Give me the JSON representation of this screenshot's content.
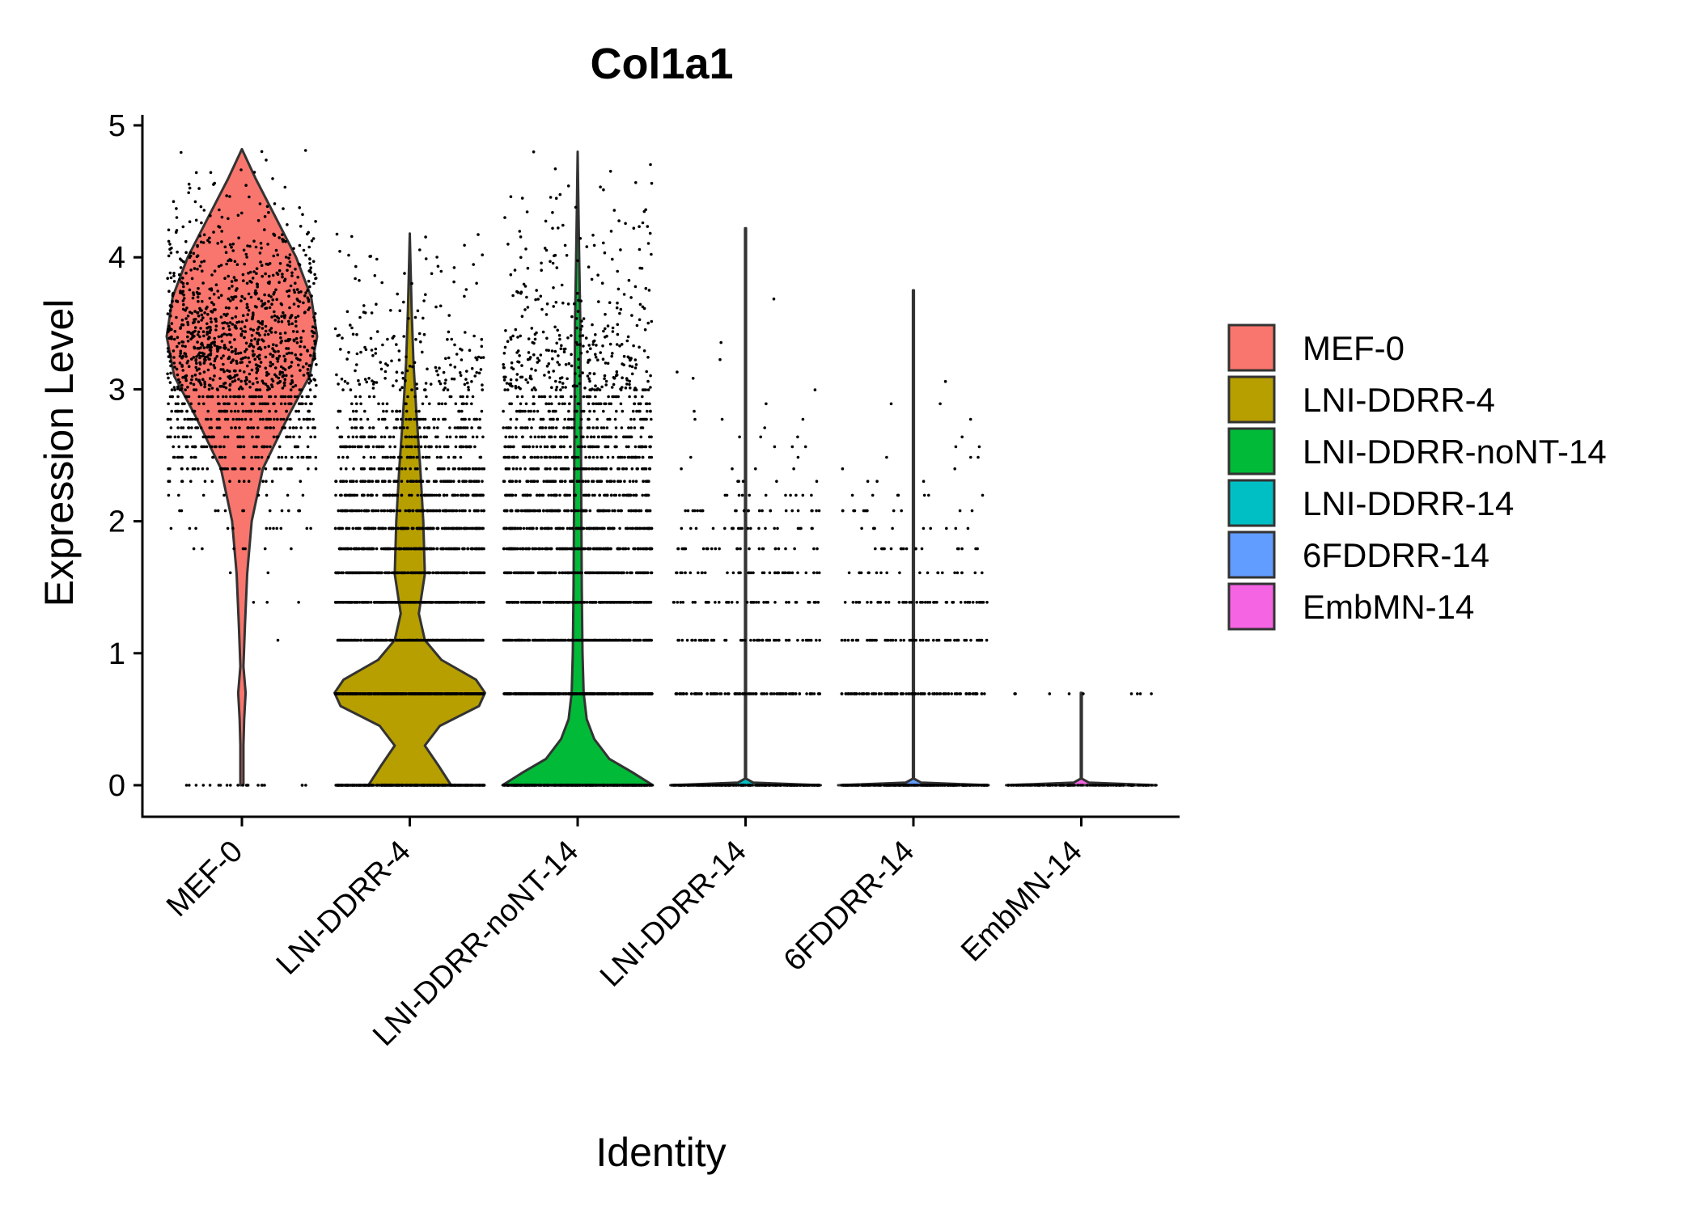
{
  "chart_data": {
    "type": "violin",
    "title": "Col1a1",
    "xlabel": "Identity",
    "ylabel": "Expression Level",
    "ylim": [
      0,
      5
    ],
    "yticks": [
      0,
      1,
      2,
      3,
      4,
      5
    ],
    "grid": false,
    "legend_position": "right",
    "show_points": true,
    "categories": [
      "MEF-0",
      "LNI-DDRR-4",
      "LNI-DDRR-noNT-14",
      "LNI-DDRR-14",
      "6FDDRR-14",
      "EmbMN-14"
    ],
    "series": [
      {
        "name": "MEF-0",
        "color": "#F8766D",
        "max": 4.82,
        "density": [
          [
            0,
            0.02
          ],
          [
            0.3,
            0.02
          ],
          [
            0.5,
            0.03
          ],
          [
            0.7,
            0.05
          ],
          [
            0.9,
            0.02
          ],
          [
            1.2,
            0.04
          ],
          [
            1.6,
            0.07
          ],
          [
            2.0,
            0.13
          ],
          [
            2.4,
            0.28
          ],
          [
            2.8,
            0.62
          ],
          [
            3.1,
            0.9
          ],
          [
            3.4,
            1.0
          ],
          [
            3.7,
            0.92
          ],
          [
            4.0,
            0.72
          ],
          [
            4.3,
            0.45
          ],
          [
            4.6,
            0.18
          ],
          [
            4.82,
            0
          ]
        ],
        "points": {
          "count": 1400,
          "zero_fraction": 0.015,
          "mean": 3.25,
          "sd": 0.55
        }
      },
      {
        "name": "LNI-DDRR-4",
        "color": "#B79F00",
        "max": 4.18,
        "density": [
          [
            0,
            0.55
          ],
          [
            0.15,
            0.38
          ],
          [
            0.3,
            0.2
          ],
          [
            0.45,
            0.4
          ],
          [
            0.6,
            0.92
          ],
          [
            0.7,
            1.0
          ],
          [
            0.8,
            0.88
          ],
          [
            0.95,
            0.42
          ],
          [
            1.1,
            0.2
          ],
          [
            1.3,
            0.12
          ],
          [
            1.6,
            0.2
          ],
          [
            2.0,
            0.18
          ],
          [
            2.4,
            0.14
          ],
          [
            2.8,
            0.09
          ],
          [
            3.2,
            0.05
          ],
          [
            3.6,
            0.025
          ],
          [
            3.9,
            0.012
          ],
          [
            4.18,
            0
          ]
        ],
        "points": {
          "count": 2600,
          "zero_fraction": 0.12,
          "mean": 1.7,
          "sd": 0.9
        }
      },
      {
        "name": "LNI-DDRR-noNT-14",
        "color": "#00BA38",
        "max": 4.8,
        "density": [
          [
            0,
            1.0
          ],
          [
            0.1,
            0.72
          ],
          [
            0.2,
            0.42
          ],
          [
            0.35,
            0.22
          ],
          [
            0.5,
            0.12
          ],
          [
            0.7,
            0.08
          ],
          [
            1.0,
            0.065
          ],
          [
            1.5,
            0.055
          ],
          [
            2.0,
            0.05
          ],
          [
            2.5,
            0.045
          ],
          [
            3.0,
            0.04
          ],
          [
            3.5,
            0.035
          ],
          [
            4.0,
            0.02
          ],
          [
            4.4,
            0.01
          ],
          [
            4.8,
            0
          ]
        ],
        "points": {
          "count": 2700,
          "zero_fraction": 0.12,
          "mean": 1.9,
          "sd": 1.0
        }
      },
      {
        "name": "LNI-DDRR-14",
        "color": "#00BFC4",
        "max": 4.22,
        "density": [
          [
            0,
            1.0
          ],
          [
            0.02,
            0.1
          ],
          [
            0.05,
            0.006
          ],
          [
            4.22,
            0.006
          ]
        ],
        "points": {
          "count": 600,
          "zero_fraction": 0.4,
          "mean": 1.3,
          "sd": 0.8
        }
      },
      {
        "name": "6FDDRR-14",
        "color": "#619CFF",
        "max": 3.75,
        "density": [
          [
            0,
            1.0
          ],
          [
            0.02,
            0.1
          ],
          [
            0.05,
            0.006
          ],
          [
            3.75,
            0.006
          ]
        ],
        "points": {
          "count": 550,
          "zero_fraction": 0.45,
          "mean": 1.1,
          "sd": 0.7
        }
      },
      {
        "name": "EmbMN-14",
        "color": "#F564E3",
        "max": 0.7,
        "density": [
          [
            0,
            1.0
          ],
          [
            0.02,
            0.1
          ],
          [
            0.05,
            0.006
          ],
          [
            0.7,
            0.006
          ]
        ],
        "points": {
          "count": 140,
          "zero_fraction": 0.93,
          "mean": 0.7,
          "sd": 0.01
        }
      }
    ]
  }
}
